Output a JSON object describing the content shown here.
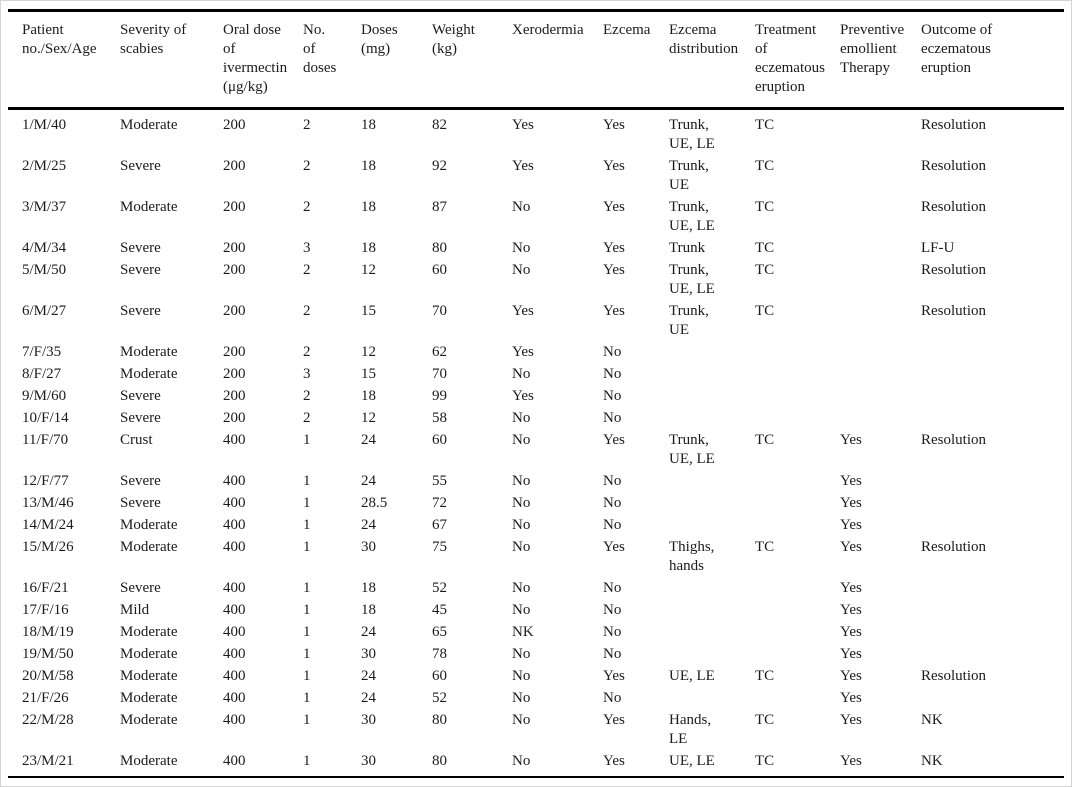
{
  "page": {
    "background_color": "#ffffff",
    "frame_color": "#d4d4d4",
    "rule_color": "#000000",
    "text_color": "#1b1b1b"
  },
  "table": {
    "columns": [
      {
        "id": "patient-no-sex-age",
        "label": "Patient\nno./Sex/Age"
      },
      {
        "id": "severity-of-scabies",
        "label": "Severity of\nscabies"
      },
      {
        "id": "oral-dose-ivermectin",
        "label": "Oral dose\nof\nivermectin\n(μg/kg)"
      },
      {
        "id": "no-of-doses",
        "label": "No.\nof\ndoses"
      },
      {
        "id": "doses-mg",
        "label": "Doses\n(mg)"
      },
      {
        "id": "weight-kg",
        "label": "Weight\n(kg)"
      },
      {
        "id": "xerodermia",
        "label": "Xerodermia"
      },
      {
        "id": "ezcema",
        "label": "Ezcema"
      },
      {
        "id": "ezcema-distribution",
        "label": "Ezcema\ndistribution"
      },
      {
        "id": "treatment-eczematous",
        "label": "Treatment\nof\neczematous\neruption"
      },
      {
        "id": "preventive-emollient",
        "label": "Preventive\nemollient\nTherapy"
      },
      {
        "id": "outcome-eczematous",
        "label": "Outcome of\neczematous\neruption"
      }
    ],
    "rows": [
      [
        "1/M/40",
        "Moderate",
        "200",
        "2",
        "18",
        "82",
        "Yes",
        "Yes",
        "Trunk,\nUE, LE",
        "TC",
        "",
        "Resolution"
      ],
      [
        "2/M/25",
        "Severe",
        "200",
        "2",
        "18",
        "92",
        "Yes",
        "Yes",
        "Trunk,\nUE",
        "TC",
        "",
        "Resolution"
      ],
      [
        "3/M/37",
        "Moderate",
        "200",
        "2",
        "18",
        "87",
        "No",
        "Yes",
        "Trunk,\nUE, LE",
        "TC",
        "",
        "Resolution"
      ],
      [
        "4/M/34",
        "Severe",
        "200",
        "3",
        "18",
        "80",
        "No",
        "Yes",
        "Trunk",
        "TC",
        "",
        "LF-U"
      ],
      [
        "5/M/50",
        "Severe",
        "200",
        "2",
        "12",
        "60",
        "No",
        "Yes",
        "Trunk,\nUE, LE",
        "TC",
        "",
        "Resolution"
      ],
      [
        "6/M/27",
        "Severe",
        "200",
        "2",
        "15",
        "70",
        "Yes",
        "Yes",
        "Trunk,\nUE",
        "TC",
        "",
        "Resolution"
      ],
      [
        "7/F/35",
        "Moderate",
        "200",
        "2",
        "12",
        "62",
        "Yes",
        "No",
        "",
        "",
        "",
        ""
      ],
      [
        "8/F/27",
        "Moderate",
        "200",
        "3",
        "15",
        "70",
        "No",
        "No",
        "",
        "",
        "",
        ""
      ],
      [
        "9/M/60",
        "Severe",
        "200",
        "2",
        "18",
        "99",
        "Yes",
        "No",
        "",
        "",
        "",
        ""
      ],
      [
        "10/F/14",
        "Severe",
        "200",
        "2",
        "12",
        "58",
        "No",
        "No",
        "",
        "",
        "",
        ""
      ],
      [
        "11/F/70",
        "Crust",
        "400",
        "1",
        "24",
        "60",
        "No",
        "Yes",
        "Trunk,\nUE, LE",
        "TC",
        "Yes",
        "Resolution"
      ],
      [
        "12/F/77",
        "Severe",
        "400",
        "1",
        "24",
        "55",
        "No",
        "No",
        "",
        "",
        "Yes",
        ""
      ],
      [
        "13/M/46",
        "Severe",
        "400",
        "1",
        "28.5",
        "72",
        "No",
        "No",
        "",
        "",
        "Yes",
        ""
      ],
      [
        "14/M/24",
        "Moderate",
        "400",
        "1",
        "24",
        "67",
        "No",
        "No",
        "",
        "",
        "Yes",
        ""
      ],
      [
        "15/M/26",
        "Moderate",
        "400",
        "1",
        "30",
        "75",
        "No",
        "Yes",
        "Thighs,\nhands",
        "TC",
        "Yes",
        "Resolution"
      ],
      [
        "16/F/21",
        "Severe",
        "400",
        "1",
        "18",
        "52",
        "No",
        "No",
        "",
        "",
        "Yes",
        ""
      ],
      [
        "17/F/16",
        "Mild",
        "400",
        "1",
        "18",
        "45",
        "No",
        "No",
        "",
        "",
        "Yes",
        ""
      ],
      [
        "18/M/19",
        "Moderate",
        "400",
        "1",
        "24",
        "65",
        "NK",
        "No",
        "",
        "",
        "Yes",
        ""
      ],
      [
        "19/M/50",
        "Moderate",
        "400",
        "1",
        "30",
        "78",
        "No",
        "No",
        "",
        "",
        "Yes",
        ""
      ],
      [
        "20/M/58",
        "Moderate",
        "400",
        "1",
        "24",
        "60",
        "No",
        "Yes",
        "UE, LE",
        "TC",
        "Yes",
        "Resolution"
      ],
      [
        "21/F/26",
        "Moderate",
        "400",
        "1",
        "24",
        "52",
        "No",
        "No",
        "",
        "",
        "Yes",
        ""
      ],
      [
        "22/M/28",
        "Moderate",
        "400",
        "1",
        "30",
        "80",
        "No",
        "Yes",
        "Hands,\nLE",
        "TC",
        "Yes",
        "NK"
      ],
      [
        "23/M/21",
        "Moderate",
        "400",
        "1",
        "30",
        "80",
        "No",
        "Yes",
        "UE, LE",
        "TC",
        "Yes",
        "NK"
      ]
    ]
  }
}
